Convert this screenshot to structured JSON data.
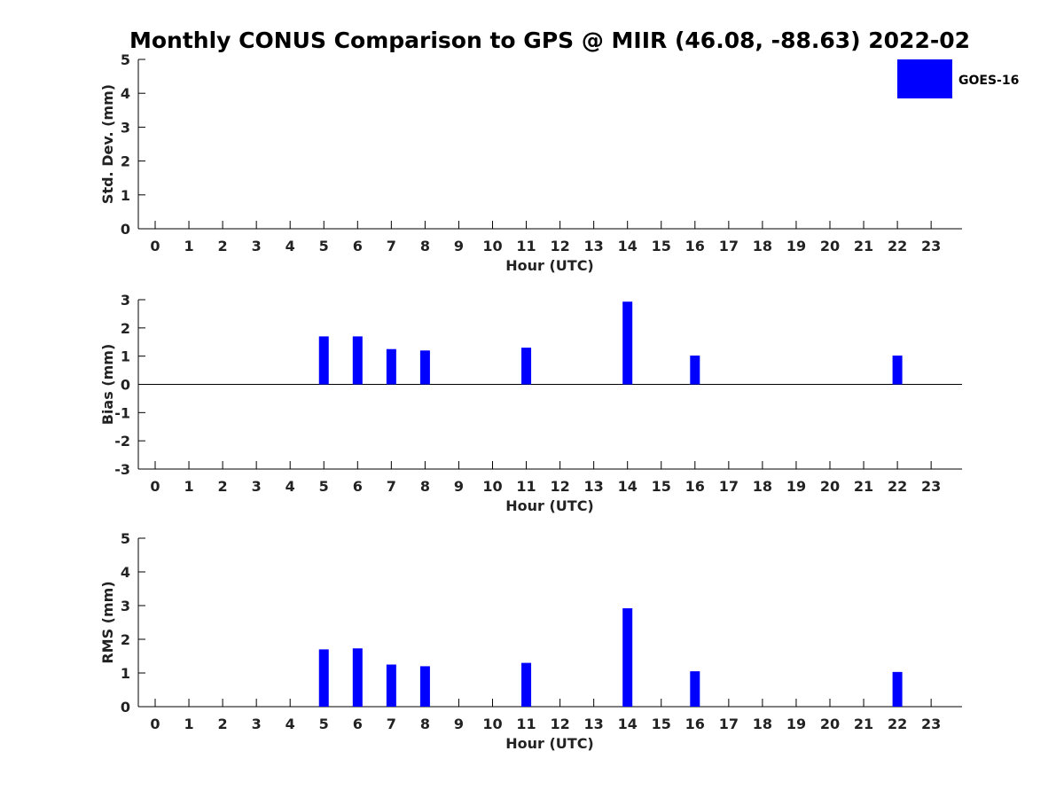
{
  "title": "Monthly CONUS Comparison to GPS @ MIIR (46.08, -88.63) 2022-02",
  "legend": {
    "label": "GOES-16",
    "color": "#0000ff",
    "position": "top-right"
  },
  "chart_data": [
    {
      "type": "bar",
      "name": "std_dev",
      "xlabel": "Hour (UTC)",
      "ylabel": "Std. Dev. (mm)",
      "ylim": [
        0,
        5
      ],
      "yticks": [
        0,
        1,
        2,
        3,
        4,
        5
      ],
      "categories": [
        "0",
        "1",
        "2",
        "3",
        "4",
        "5",
        "6",
        "7",
        "8",
        "9",
        "10",
        "11",
        "12",
        "13",
        "14",
        "15",
        "16",
        "17",
        "18",
        "19",
        "20",
        "21",
        "22",
        "23"
      ],
      "series": [
        {
          "name": "GOES-16",
          "color": "#0000ff",
          "values": [
            null,
            null,
            null,
            null,
            null,
            null,
            null,
            null,
            null,
            null,
            null,
            null,
            null,
            null,
            null,
            null,
            null,
            null,
            null,
            null,
            null,
            null,
            null,
            null
          ]
        }
      ],
      "zero_line": false
    },
    {
      "type": "bar",
      "name": "bias",
      "xlabel": "Hour (UTC)",
      "ylabel": "Bias (mm)",
      "ylim": [
        -3,
        3
      ],
      "yticks": [
        -3,
        -2,
        -1,
        0,
        1,
        2,
        3
      ],
      "categories": [
        "0",
        "1",
        "2",
        "3",
        "4",
        "5",
        "6",
        "7",
        "8",
        "9",
        "10",
        "11",
        "12",
        "13",
        "14",
        "15",
        "16",
        "17",
        "18",
        "19",
        "20",
        "21",
        "22",
        "23"
      ],
      "series": [
        {
          "name": "GOES-16",
          "color": "#0000ff",
          "values": [
            null,
            null,
            null,
            null,
            null,
            1.7,
            1.7,
            1.25,
            1.2,
            null,
            null,
            1.3,
            null,
            null,
            2.93,
            null,
            1.02,
            null,
            null,
            null,
            null,
            null,
            1.02,
            null
          ]
        }
      ],
      "zero_line": true
    },
    {
      "type": "bar",
      "name": "rms",
      "xlabel": "Hour (UTC)",
      "ylabel": "RMS (mm)",
      "ylim": [
        0,
        5
      ],
      "yticks": [
        0,
        1,
        2,
        3,
        4,
        5
      ],
      "categories": [
        "0",
        "1",
        "2",
        "3",
        "4",
        "5",
        "6",
        "7",
        "8",
        "9",
        "10",
        "11",
        "12",
        "13",
        "14",
        "15",
        "16",
        "17",
        "18",
        "19",
        "20",
        "21",
        "22",
        "23"
      ],
      "series": [
        {
          "name": "GOES-16",
          "color": "#0000ff",
          "values": [
            null,
            null,
            null,
            null,
            null,
            1.7,
            1.73,
            1.25,
            1.2,
            null,
            null,
            1.3,
            null,
            null,
            2.92,
            null,
            1.05,
            null,
            null,
            null,
            null,
            null,
            1.03,
            null
          ]
        }
      ],
      "zero_line": false
    }
  ]
}
